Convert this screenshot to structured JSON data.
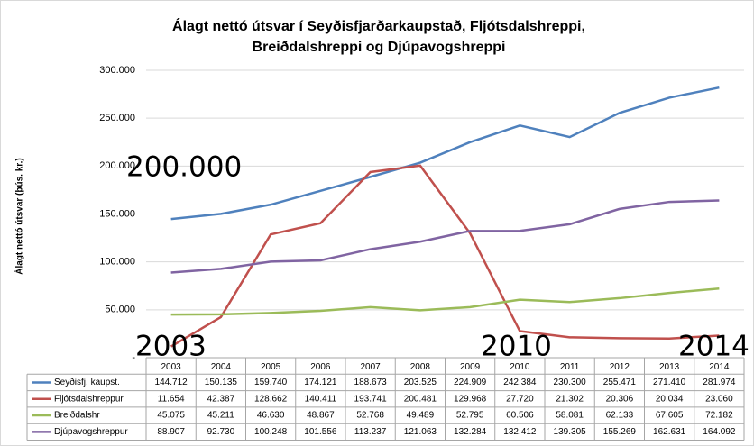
{
  "chart_data": {
    "type": "line",
    "title": [
      "Álagt nettó útsvar í Seyðisfjarðarkaupstað,  Fljótsdalshreppi,",
      "Breiðdalshreppi  og Djúpavogshreppi"
    ],
    "y_label": "Álagt nettó útsvar (þús. kr.)",
    "categories": [
      "2003",
      "2004",
      "2005",
      "2006",
      "2007",
      "2008",
      "2009",
      "2010",
      "2011",
      "2012",
      "2013",
      "2014"
    ],
    "ylim": [
      0,
      300000
    ],
    "yticks": [
      {
        "value": 0,
        "label": "-"
      },
      {
        "value": 50000,
        "label": "50.000"
      },
      {
        "value": 100000,
        "label": "100.000"
      },
      {
        "value": 150000,
        "label": "150.000"
      },
      {
        "value": 200000,
        "label": "200.000"
      },
      {
        "value": 250000,
        "label": "250.000"
      },
      {
        "value": 300000,
        "label": "300.000"
      }
    ],
    "grid": true,
    "series": [
      {
        "name": "Seyðisfj. kaupst.",
        "color": "#4f81bd",
        "values": [
          144712,
          150135,
          159740,
          174121,
          188673,
          203525,
          224909,
          242384,
          230300,
          255471,
          271410,
          281974
        ],
        "value_labels": [
          "144.712",
          "150.135",
          "159.740",
          "174.121",
          "188.673",
          "203.525",
          "224.909",
          "242.384",
          "230.300",
          "255.471",
          "271.410",
          "281.974"
        ]
      },
      {
        "name": "Fljótsdalshreppur",
        "color": "#c0504d",
        "values": [
          11654,
          42387,
          128662,
          140411,
          193741,
          200481,
          129968,
          27720,
          21302,
          20306,
          20034,
          23060
        ],
        "value_labels": [
          "11.654",
          "42.387",
          "128.662",
          "140.411",
          "193.741",
          "200.481",
          "129.968",
          "27.720",
          "21.302",
          "20.306",
          "20.034",
          "23.060"
        ]
      },
      {
        "name": "Breiðdalshr",
        "color": "#9bbb59",
        "values": [
          45075,
          45211,
          46630,
          48867,
          52768,
          49489,
          52795,
          60506,
          58081,
          62133,
          67605,
          72182
        ],
        "value_labels": [
          "45.075",
          "45.211",
          "46.630",
          "48.867",
          "52.768",
          "49.489",
          "52.795",
          "60.506",
          "58.081",
          "62.133",
          "67.605",
          "72.182"
        ]
      },
      {
        "name": "Djúpavogshreppur",
        "color": "#8064a2",
        "values": [
          88907,
          92730,
          100248,
          101556,
          113237,
          121063,
          132284,
          132412,
          139305,
          155269,
          162631,
          164092
        ],
        "value_labels": [
          "88.907",
          "92.730",
          "100.248",
          "101.556",
          "113.237",
          "121.063",
          "132.284",
          "132.412",
          "139.305",
          "155.269",
          "162.631",
          "164.092"
        ]
      }
    ],
    "annotations": [
      "200.000",
      "2003",
      "2010",
      "2014"
    ]
  }
}
